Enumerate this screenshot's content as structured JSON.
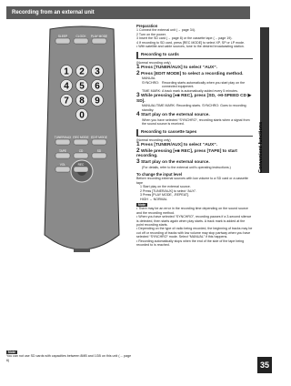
{
  "header": {
    "title": "Recording from an external unit"
  },
  "remote": {
    "digits": [
      "1",
      "2",
      "3",
      "4",
      "5",
      "6",
      "7",
      "8",
      "9",
      "0"
    ],
    "keys": [
      "SLEEP",
      "CLOCK",
      "PLAY MODE",
      "TUNER/AUX",
      "REC MODE",
      "EDIT MODE",
      "TAPE",
      "CD",
      "SD",
      "VOL",
      "REC"
    ]
  },
  "left_note": {
    "title": "Note",
    "text": "You can not use SD cards with capacities between 8MB and 1GB on this unit (→ page 6)"
  },
  "preparation": {
    "title": "Preparation",
    "items": [
      "1  Connect the external unit (→ page 34).",
      "2  Turn on the power.",
      "3  Insert the SD card (→ page 8) or the cassette tape (→ page 19).",
      "4  If recording to SD card, press [REC MODE] to select XP, SP or LP mode.",
      "• With satellite and cable sources, tune to the desired broadcasting station."
    ]
  },
  "cards": {
    "title": "Recording to cards",
    "subtitle": "(Normal recording only)",
    "step1": "Press [TUNER/AUX] to select “AUX”.",
    "step2": "Press [EDIT MODE] to select a recording method.",
    "diagram": {
      "manual": "MANUAL",
      "synchro": "SYNCHRO:",
      "synchro_text": "Recording starts automatically when you start play on the connected equipment.",
      "timemark": "TIME MARK:",
      "timemark_text": "A track mark is automatically added every 5 minutes."
    },
    "step3": "While pressing [●■ REC], press [SD, -HI-SPEED CD ▶ SD].",
    "step3_note": "MANUAL/TIME MARK: Recording starts. SYNCHRO: Goes to recording standby.",
    "step4": "Start play on the external source.",
    "step4_note": "When you have selected “SYNCHRO”, recording starts when a signal from the sound source is received."
  },
  "tapes": {
    "title": "Recording to cassette tapes",
    "subtitle": "(Normal recording only)",
    "step1": "Press [TUNER/AUX] to select “AUX”.",
    "step2": "While pressing [●■ REC], press [TAPE] to start recording.",
    "step3": "Start play on the external source.",
    "note": "(For details, refer to the external unit’s operating instructions.)"
  },
  "input_level": {
    "title": "To change the input level",
    "intro": "Before recording external sources with low volume to a SD card or a cassette tape",
    "items": [
      "1  Start play on the external source.",
      "2  Press [TUNER/AUX] to select “AUX”.",
      "3  Press [PLAY MODE, -REPEAT].",
      "HIGH ↔ NORMAL"
    ]
  },
  "note": {
    "title": "Note",
    "items": [
      "• There may be an error in the recording time depending on the sound source and the recording method.",
      "• When you have selected “SYNCHRO”, recording pauses if a 3-second silence is detected, then starts again when play starts. A track mark is added at the point recording starts.",
      "• Depending on the type of radio being recorded, the beginning of tracks may be cut off or recording of tracks with low volume may stop partway when you have selected “SYNCHRO” mode. Select “MANUAL” if this happens.",
      "• Recording automatically stops when the end of the side of the tape being recorded to is reached."
    ]
  },
  "side": {
    "tab": "Convenient functions",
    "page": "35"
  }
}
